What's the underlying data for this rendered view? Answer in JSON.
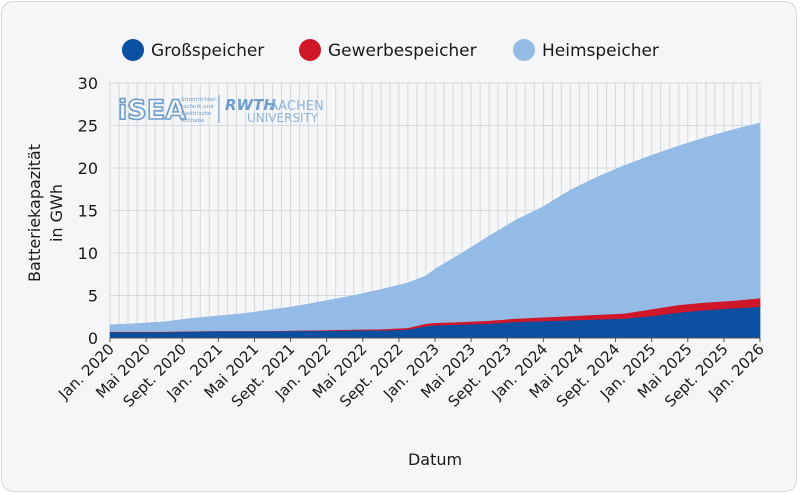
{
  "chart_data": {
    "type": "area",
    "stacked": true,
    "ylabel_lines": [
      "Batteriekapazität",
      "in GWh"
    ],
    "xlabel": "Datum",
    "ylim": [
      0,
      30
    ],
    "y_ticks": [
      0,
      5,
      10,
      15,
      20,
      25,
      30
    ],
    "x_tick_labels": [
      "Jan. 2020",
      "Mai 2020",
      "Sept. 2020",
      "Jan. 2021",
      "Mai 2021",
      "Sept. 2021",
      "Jan. 2022",
      "Mai 2022",
      "Sept. 2022",
      "Jan. 2023",
      "Mai 2023",
      "Sept. 2023",
      "Jan. 2024",
      "Mai 2024",
      "Sept. 2024",
      "Jan. 2025",
      "Mai 2025",
      "Sept. 2025",
      "Jan. 2026"
    ],
    "x_months_step": 4,
    "grid": true,
    "legend_position": "top",
    "series": [
      {
        "name": "Großspeicher",
        "color": "#0a4fa0",
        "values": [
          0.7,
          0.7,
          0.7,
          0.75,
          0.8,
          0.8,
          0.8,
          0.85,
          0.85,
          0.9,
          0.9,
          1.0,
          1.4,
          1.5,
          1.6,
          1.7,
          1.9,
          2.0,
          2.1,
          2.2,
          2.3,
          2.6,
          3.0,
          3.3,
          3.5,
          3.7,
          4.1
        ]
      },
      {
        "name": "Gewerbespeicher",
        "color": "#d0172a",
        "values": [
          0.05,
          0.05,
          0.05,
          0.05,
          0.05,
          0.05,
          0.05,
          0.05,
          0.1,
          0.1,
          0.15,
          0.2,
          0.3,
          0.3,
          0.3,
          0.35,
          0.4,
          0.45,
          0.5,
          0.55,
          0.6,
          0.8,
          0.9,
          0.9,
          0.9,
          1.0,
          1.1
        ]
      },
      {
        "name": "Heimspeicher",
        "color": "#93bbe6",
        "values": [
          0.8,
          0.95,
          1.15,
          1.5,
          1.75,
          2.05,
          2.5,
          2.9,
          3.45,
          4.0,
          4.65,
          5.3,
          5.6,
          6.3,
          8.1,
          9.95,
          11.6,
          13.0,
          14.8,
          16.2,
          17.4,
          18.1,
          18.7,
          19.4,
          20.1,
          20.6,
          19.9
        ]
      }
    ],
    "x_months": [
      0,
      3,
      6,
      9,
      12,
      15,
      18,
      21,
      24,
      27,
      30,
      33,
      35,
      36,
      39,
      42,
      45,
      48,
      51,
      54,
      57,
      60,
      63,
      66,
      69,
      72,
      72
    ]
  },
  "logo": {
    "isea_text": "iSEA",
    "isea_subtitle_lines": [
      "Stromrichter-",
      "technik und",
      "Elektrische",
      "Antriebe"
    ],
    "rwth_text": "RWTH",
    "aachen_text": "AACHEN",
    "university_text": "UNIVERSITY"
  },
  "colors": {
    "grid": "#d6d9de",
    "plot_bg": "#f5f6f7"
  }
}
